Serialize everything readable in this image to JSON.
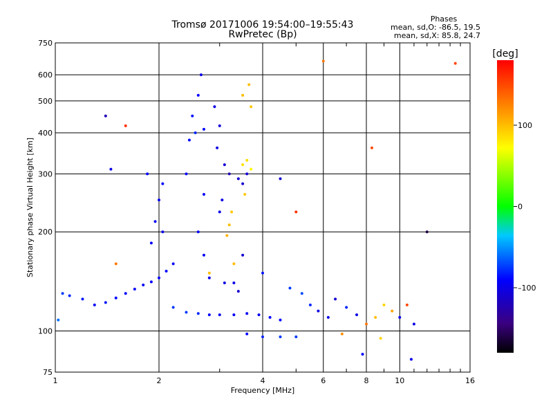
{
  "chart_data": {
    "type": "scatter",
    "title": "Tromsø 20171006 19:54:00–19:55:43",
    "subtitle": "RwPretec (Bp)",
    "xlabel": "Frequency [MHz]",
    "ylabel": "Stationary phase Virtual Height [km]",
    "x_scale": "log",
    "y_scale": "log",
    "xlim": [
      1,
      16
    ],
    "ylim": [
      75,
      750
    ],
    "x_ticks": [
      1,
      2,
      4,
      6,
      8,
      10,
      16
    ],
    "x_tick_labels": [
      "1",
      "2",
      "4",
      "6",
      "8",
      "10",
      "16"
    ],
    "y_ticks": [
      75,
      100,
      200,
      300,
      400,
      500,
      600,
      750
    ],
    "y_tick_labels": [
      "75",
      "100",
      "200",
      "300",
      "400",
      "500",
      "600",
      "750"
    ],
    "grid": true,
    "stats": {
      "heading": "Phases",
      "line_o": "mean, sd,O: -86.5, 19.5",
      "line_x": "mean, sd,X:  85.8, 24.7"
    },
    "colorbar": {
      "label": "[deg]",
      "range": [
        -180,
        180
      ],
      "ticks": [
        100,
        0,
        -100
      ],
      "tick_labels": [
        "100",
        "0",
        "–100"
      ]
    },
    "series": [
      {
        "values": [
          {
            "x": 1.02,
            "y": 108,
            "c": -60
          },
          {
            "x": 1.05,
            "y": 130,
            "c": -75
          },
          {
            "x": 1.1,
            "y": 128,
            "c": -80
          },
          {
            "x": 1.2,
            "y": 125,
            "c": -85
          },
          {
            "x": 1.3,
            "y": 120,
            "c": -90
          },
          {
            "x": 1.4,
            "y": 122,
            "c": -85
          },
          {
            "x": 1.5,
            "y": 126,
            "c": -90
          },
          {
            "x": 1.6,
            "y": 130,
            "c": -90
          },
          {
            "x": 1.7,
            "y": 134,
            "c": -95
          },
          {
            "x": 1.8,
            "y": 138,
            "c": -95
          },
          {
            "x": 1.9,
            "y": 141,
            "c": -95
          },
          {
            "x": 2.0,
            "y": 145,
            "c": -90
          },
          {
            "x": 2.1,
            "y": 152,
            "c": -90
          },
          {
            "x": 1.9,
            "y": 185,
            "c": -95
          },
          {
            "x": 1.95,
            "y": 215,
            "c": -95
          },
          {
            "x": 2.0,
            "y": 250,
            "c": -95
          },
          {
            "x": 2.05,
            "y": 280,
            "c": -90
          },
          {
            "x": 1.85,
            "y": 300,
            "c": -90
          },
          {
            "x": 2.05,
            "y": 200,
            "c": -100
          },
          {
            "x": 2.2,
            "y": 160,
            "c": -95
          },
          {
            "x": 2.2,
            "y": 118,
            "c": -75
          },
          {
            "x": 2.4,
            "y": 114,
            "c": -75
          },
          {
            "x": 2.6,
            "y": 113,
            "c": -80
          },
          {
            "x": 2.8,
            "y": 112,
            "c": -90
          },
          {
            "x": 3.0,
            "y": 112,
            "c": -95
          },
          {
            "x": 3.3,
            "y": 112,
            "c": -95
          },
          {
            "x": 3.6,
            "y": 113,
            "c": -95
          },
          {
            "x": 3.9,
            "y": 112,
            "c": -95
          },
          {
            "x": 4.2,
            "y": 110,
            "c": -90
          },
          {
            "x": 4.5,
            "y": 108,
            "c": -90
          },
          {
            "x": 3.6,
            "y": 98,
            "c": -90
          },
          {
            "x": 4.0,
            "y": 96,
            "c": -80
          },
          {
            "x": 4.5,
            "y": 96,
            "c": -75
          },
          {
            "x": 5.0,
            "y": 96,
            "c": -75
          },
          {
            "x": 2.4,
            "y": 300,
            "c": -90
          },
          {
            "x": 2.45,
            "y": 380,
            "c": -90
          },
          {
            "x": 2.5,
            "y": 450,
            "c": -85
          },
          {
            "x": 2.6,
            "y": 520,
            "c": -90
          },
          {
            "x": 2.65,
            "y": 600,
            "c": -100
          },
          {
            "x": 2.7,
            "y": 410,
            "c": -90
          },
          {
            "x": 2.55,
            "y": 400,
            "c": -80
          },
          {
            "x": 2.7,
            "y": 260,
            "c": -95
          },
          {
            "x": 2.9,
            "y": 480,
            "c": -100
          },
          {
            "x": 3.0,
            "y": 420,
            "c": -105
          },
          {
            "x": 2.95,
            "y": 360,
            "c": -100
          },
          {
            "x": 3.1,
            "y": 320,
            "c": -110
          },
          {
            "x": 3.2,
            "y": 300,
            "c": -120
          },
          {
            "x": 3.4,
            "y": 290,
            "c": -110
          },
          {
            "x": 3.5,
            "y": 280,
            "c": -110
          },
          {
            "x": 3.6,
            "y": 300,
            "c": -110
          },
          {
            "x": 3.1,
            "y": 140,
            "c": -100
          },
          {
            "x": 3.3,
            "y": 140,
            "c": -100
          },
          {
            "x": 3.4,
            "y": 132,
            "c": -110
          },
          {
            "x": 3.5,
            "y": 170,
            "c": -110
          },
          {
            "x": 2.6,
            "y": 200,
            "c": -95
          },
          {
            "x": 2.7,
            "y": 170,
            "c": -95
          },
          {
            "x": 2.8,
            "y": 145,
            "c": -100
          },
          {
            "x": 3.0,
            "y": 230,
            "c": -100
          },
          {
            "x": 3.05,
            "y": 250,
            "c": -100
          },
          {
            "x": 4.5,
            "y": 290,
            "c": -110
          },
          {
            "x": 3.2,
            "y": 210,
            "c": 100
          },
          {
            "x": 3.25,
            "y": 230,
            "c": 95
          },
          {
            "x": 3.15,
            "y": 195,
            "c": 105
          },
          {
            "x": 3.5,
            "y": 320,
            "c": 85
          },
          {
            "x": 3.6,
            "y": 330,
            "c": 85
          },
          {
            "x": 3.7,
            "y": 310,
            "c": 75
          },
          {
            "x": 3.55,
            "y": 260,
            "c": 95
          },
          {
            "x": 3.65,
            "y": 560,
            "c": 100
          },
          {
            "x": 3.5,
            "y": 520,
            "c": 100
          },
          {
            "x": 3.7,
            "y": 480,
            "c": 95
          },
          {
            "x": 3.3,
            "y": 160,
            "c": 100
          },
          {
            "x": 2.8,
            "y": 150,
            "c": 100
          },
          {
            "x": 4.0,
            "y": 150,
            "c": -85
          },
          {
            "x": 4.8,
            "y": 135,
            "c": -75
          },
          {
            "x": 5.2,
            "y": 130,
            "c": -70
          },
          {
            "x": 5.5,
            "y": 120,
            "c": -80
          },
          {
            "x": 5.8,
            "y": 115,
            "c": -100
          },
          {
            "x": 6.2,
            "y": 110,
            "c": -100
          },
          {
            "x": 6.5,
            "y": 125,
            "c": -110
          },
          {
            "x": 7.0,
            "y": 118,
            "c": -80
          },
          {
            "x": 7.5,
            "y": 112,
            "c": -100
          },
          {
            "x": 8.0,
            "y": 105,
            "c": 130
          },
          {
            "x": 8.5,
            "y": 110,
            "c": 100
          },
          {
            "x": 9.0,
            "y": 120,
            "c": 90
          },
          {
            "x": 9.5,
            "y": 115,
            "c": 110
          },
          {
            "x": 10.0,
            "y": 110,
            "c": -100
          },
          {
            "x": 10.5,
            "y": 120,
            "c": 150
          },
          {
            "x": 11.0,
            "y": 105,
            "c": -100
          },
          {
            "x": 6.8,
            "y": 98,
            "c": 120
          },
          {
            "x": 7.8,
            "y": 85,
            "c": -90
          },
          {
            "x": 8.8,
            "y": 95,
            "c": 90
          },
          {
            "x": 10.8,
            "y": 82,
            "c": -100
          },
          {
            "x": 5.0,
            "y": 230,
            "c": 160
          },
          {
            "x": 6.0,
            "y": 660,
            "c": 130
          },
          {
            "x": 14.5,
            "y": 650,
            "c": 150
          },
          {
            "x": 8.3,
            "y": 360,
            "c": 150
          },
          {
            "x": 12.0,
            "y": 200,
            "c": -160
          },
          {
            "x": 1.4,
            "y": 450,
            "c": -120
          },
          {
            "x": 1.6,
            "y": 420,
            "c": 160
          },
          {
            "x": 1.45,
            "y": 310,
            "c": -100
          },
          {
            "x": 1.5,
            "y": 160,
            "c": 130
          }
        ]
      }
    ]
  }
}
